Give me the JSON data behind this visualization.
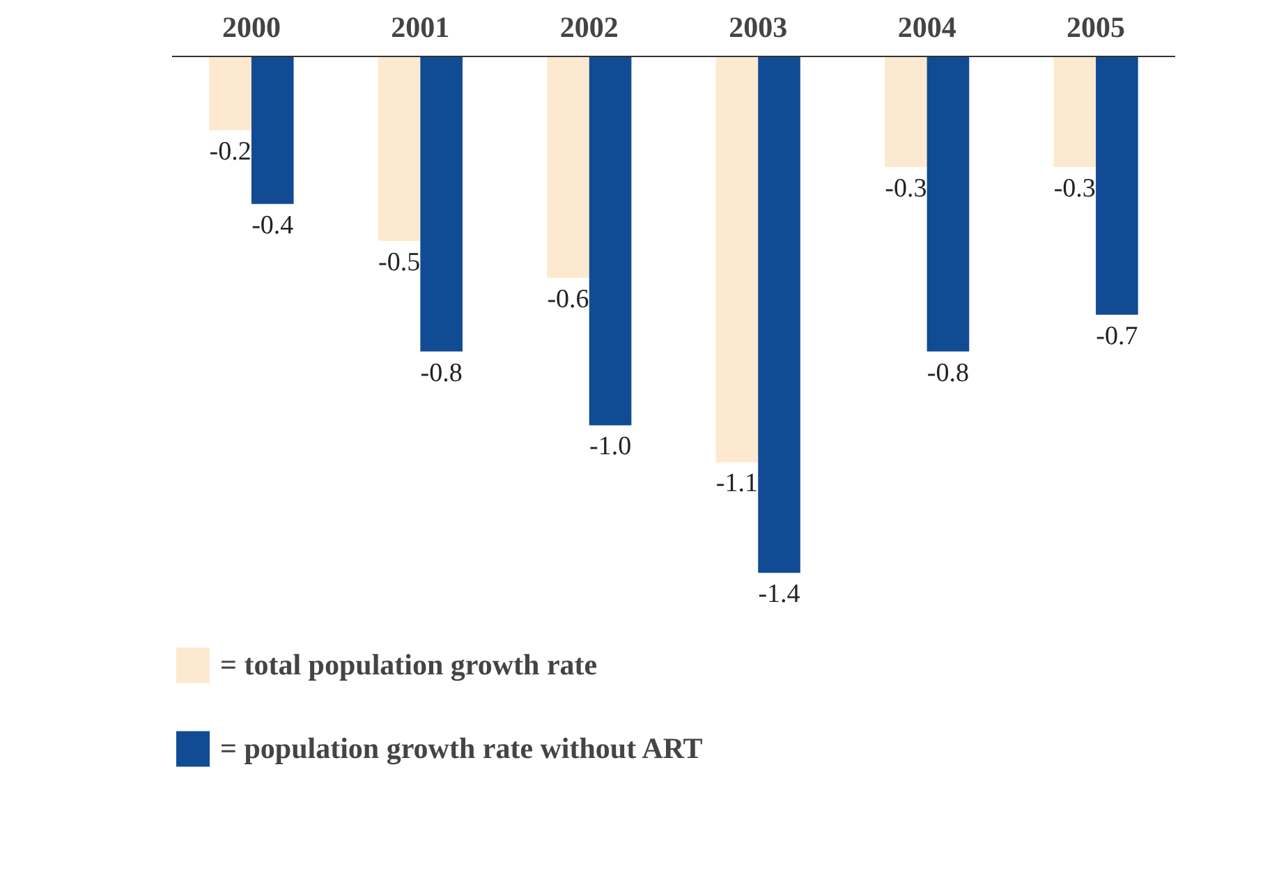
{
  "chart_data": {
    "type": "bar",
    "categories": [
      "2000",
      "2001",
      "2002",
      "2003",
      "2004",
      "2005"
    ],
    "series": [
      {
        "name": "= total population growth rate",
        "color": "#fde9cf",
        "values": [
          -0.2,
          -0.5,
          -0.6,
          -1.1,
          -0.3,
          -0.3
        ],
        "value_labels": [
          "-0.2",
          "-0.5",
          "-0.6",
          "-1.1",
          "-0.3",
          "-0.3"
        ]
      },
      {
        "name": "= population growth rate without ART",
        "color": "#114b94",
        "values": [
          -0.4,
          -0.8,
          -1.0,
          -1.4,
          -0.8,
          -0.7
        ],
        "value_labels": [
          "-0.4",
          "-0.8",
          "-1.0",
          "-1.4",
          "-0.8",
          "-0.7"
        ]
      }
    ],
    "legend": "bottom left",
    "grid": false
  }
}
